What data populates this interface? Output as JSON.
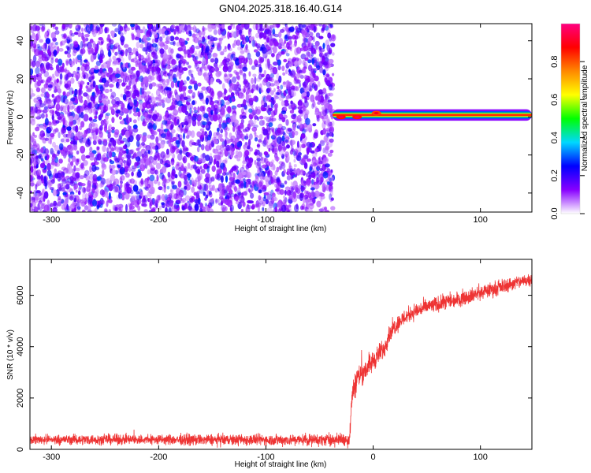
{
  "title": "GN04.2025.318.16.40.G14",
  "chart_data": [
    {
      "type": "heatmap",
      "xlabel": "Height of straight line (km)",
      "ylabel": "Frequency (Hz)",
      "xlim": [
        -320,
        148
      ],
      "ylim": [
        -50,
        49
      ],
      "xticks": [
        -300,
        -200,
        -100,
        0,
        100
      ],
      "yticks": [
        -40,
        -20,
        0,
        20,
        40
      ],
      "colorbar": {
        "label": "Normalized spectral amplitude",
        "range": [
          0,
          1
        ],
        "ticks": [
          "0.0",
          "0.2",
          "0.4",
          "0.6",
          "0.8"
        ],
        "tick_values": [
          0,
          0.2,
          0.4,
          0.6,
          0.8
        ],
        "colors": [
          "#ffffff",
          "#8800ff",
          "#0000ff",
          "#00d8ff",
          "#00ff00",
          "#ffff00",
          "#ff8800",
          "#ff0000",
          "#ff0080"
        ]
      },
      "noise_region": {
        "x_range": [
          -320,
          -37
        ],
        "freq_range": [
          -50,
          49
        ],
        "typical_amplitude": [
          0.05,
          0.2
        ]
      },
      "signal_band": {
        "x_range": [
          -38,
          148
        ],
        "frequency": 1,
        "bandwidth": 4,
        "peak_amplitude": 0.7,
        "bright_spots": [
          {
            "x": -30,
            "freq": 0,
            "amplitude": 0.95
          },
          {
            "x": -15,
            "freq": 0,
            "amplitude": 0.95
          },
          {
            "x": 3,
            "freq": 2,
            "amplitude": 0.9
          }
        ]
      }
    },
    {
      "type": "line",
      "xlabel": "Height of straight line (km)",
      "ylabel": "SNR (10 * v/v)",
      "xlim": [
        -320,
        148
      ],
      "ylim": [
        0,
        7400
      ],
      "xticks": [
        -300,
        -200,
        -100,
        0,
        100
      ],
      "yticks": [
        0,
        2000,
        4000,
        6000
      ],
      "color": "#ee3333",
      "trend": {
        "x": [
          -320,
          -250,
          -150,
          -50,
          -30,
          -22,
          -20,
          -15,
          -5,
          0,
          5,
          10,
          15,
          18,
          25,
          35,
          50,
          75,
          100,
          125,
          148
        ],
        "y": [
          380,
          380,
          370,
          370,
          380,
          400,
          2000,
          2800,
          3200,
          3450,
          3700,
          3900,
          4500,
          4700,
          5000,
          5300,
          5550,
          5800,
          6100,
          6400,
          6650
        ]
      },
      "noise_band": {
        "x": [
          -320,
          -25,
          -20,
          0,
          20,
          148
        ],
        "halfwidth": [
          200,
          250,
          550,
          450,
          350,
          280
        ]
      }
    }
  ]
}
